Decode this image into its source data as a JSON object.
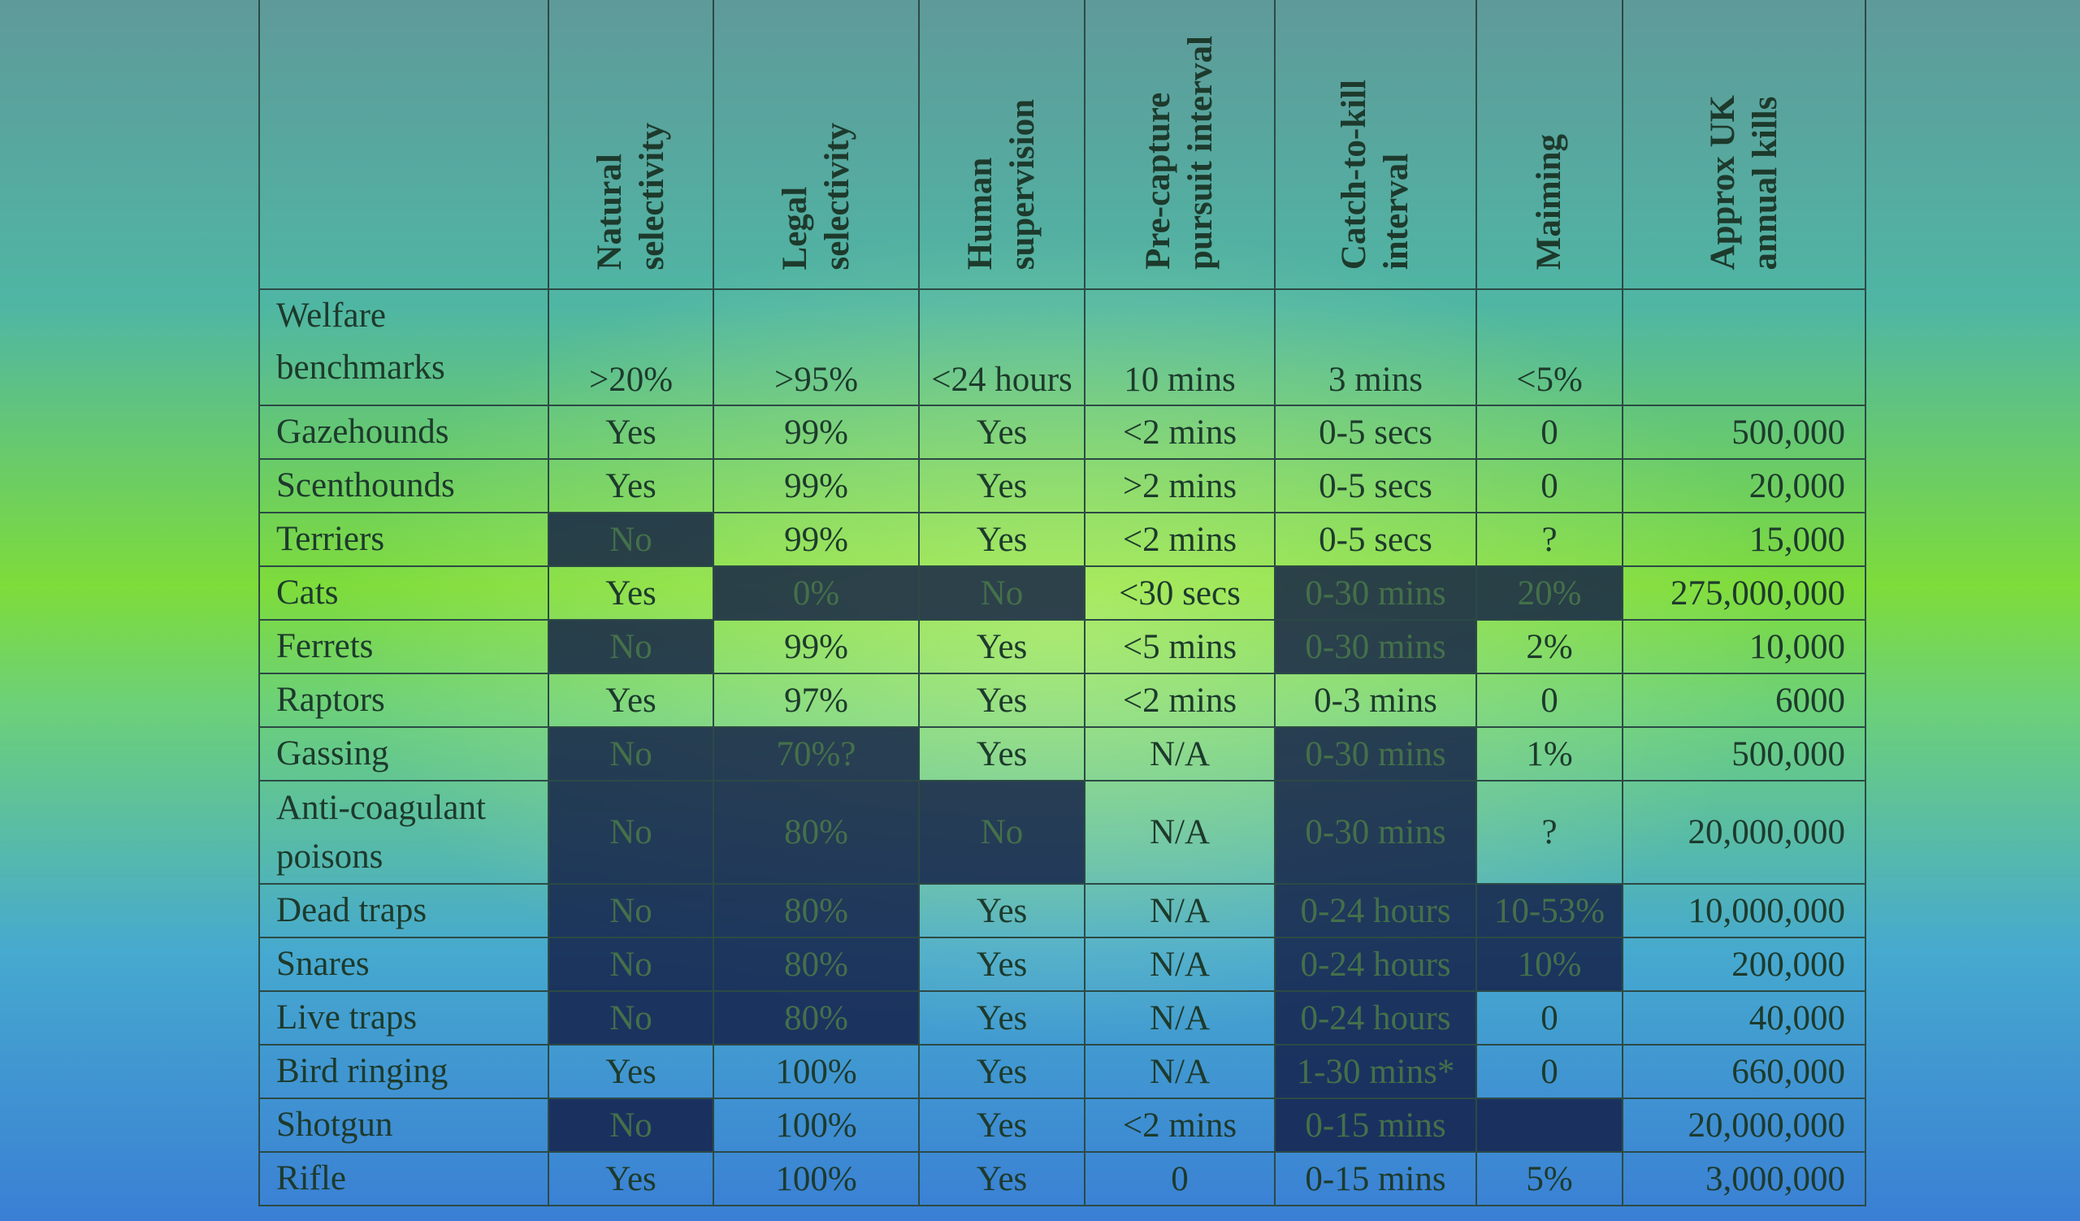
{
  "table": {
    "columns": [
      [
        "Natural",
        "selectivity"
      ],
      [
        "Legal",
        "selectivity"
      ],
      [
        "Human",
        "supervision"
      ],
      [
        "Pre-capture",
        "pursuit interval"
      ],
      [
        "Catch-to-kill",
        "interval"
      ],
      [
        "Maiming"
      ],
      [
        "Approx UK",
        "annual kills"
      ]
    ],
    "benchmarks": {
      "label": [
        "Welfare",
        "benchmarks"
      ],
      "values": [
        ">20%",
        ">95%",
        "<24 hours",
        "10 mins",
        "3 mins",
        "<5%"
      ]
    },
    "rows": [
      {
        "label": "Gazehounds",
        "cells": [
          {
            "text": "Yes",
            "flagged": false
          },
          {
            "text": "99%",
            "flagged": false
          },
          {
            "text": "Yes",
            "flagged": false
          },
          {
            "text": "<2 mins",
            "flagged": false
          },
          {
            "text": "0-5 secs",
            "flagged": false
          },
          {
            "text": "0",
            "flagged": false
          },
          {
            "text": "500,000",
            "flagged": false
          }
        ]
      },
      {
        "label": "Scenthounds",
        "cells": [
          {
            "text": "Yes",
            "flagged": false
          },
          {
            "text": "99%",
            "flagged": false
          },
          {
            "text": "Yes",
            "flagged": false
          },
          {
            "text": ">2 mins",
            "flagged": false
          },
          {
            "text": "0-5 secs",
            "flagged": false
          },
          {
            "text": "0",
            "flagged": false
          },
          {
            "text": "20,000",
            "flagged": false
          }
        ]
      },
      {
        "label": "Terriers",
        "cells": [
          {
            "text": "No",
            "flagged": true
          },
          {
            "text": "99%",
            "flagged": false
          },
          {
            "text": "Yes",
            "flagged": false
          },
          {
            "text": "<2 mins",
            "flagged": false
          },
          {
            "text": "0-5 secs",
            "flagged": false
          },
          {
            "text": "?",
            "flagged": false
          },
          {
            "text": "15,000",
            "flagged": false
          }
        ]
      },
      {
        "label": "Cats",
        "cells": [
          {
            "text": "Yes",
            "flagged": false
          },
          {
            "text": "0%",
            "flagged": true
          },
          {
            "text": "No",
            "flagged": true
          },
          {
            "text": "<30 secs",
            "flagged": false
          },
          {
            "text": "0-30 mins",
            "flagged": true
          },
          {
            "text": "20%",
            "flagged": true
          },
          {
            "text": "275,000,000",
            "flagged": false
          }
        ]
      },
      {
        "label": "Ferrets",
        "cells": [
          {
            "text": "No",
            "flagged": true
          },
          {
            "text": "99%",
            "flagged": false
          },
          {
            "text": "Yes",
            "flagged": false
          },
          {
            "text": "<5 mins",
            "flagged": false
          },
          {
            "text": "0-30 mins",
            "flagged": true
          },
          {
            "text": "2%",
            "flagged": false
          },
          {
            "text": "10,000",
            "flagged": false
          }
        ]
      },
      {
        "label": "Raptors",
        "cells": [
          {
            "text": "Yes",
            "flagged": false
          },
          {
            "text": "97%",
            "flagged": false
          },
          {
            "text": "Yes",
            "flagged": false
          },
          {
            "text": "<2 mins",
            "flagged": false
          },
          {
            "text": "0-3 mins",
            "flagged": false
          },
          {
            "text": "0",
            "flagged": false
          },
          {
            "text": "6000",
            "flagged": false
          }
        ]
      },
      {
        "label": "Gassing",
        "cells": [
          {
            "text": "No",
            "flagged": true
          },
          {
            "text": "70%?",
            "flagged": true
          },
          {
            "text": "Yes",
            "flagged": false
          },
          {
            "text": "N/A",
            "flagged": false
          },
          {
            "text": "0-30 mins",
            "flagged": true
          },
          {
            "text": "1%",
            "flagged": false
          },
          {
            "text": "500,000",
            "flagged": false
          }
        ]
      },
      {
        "label": "Anti-coagulant poisons",
        "cells": [
          {
            "text": "No",
            "flagged": true
          },
          {
            "text": "80%",
            "flagged": true
          },
          {
            "text": "No",
            "flagged": true
          },
          {
            "text": "N/A",
            "flagged": false
          },
          {
            "text": "0-30 mins",
            "flagged": true
          },
          {
            "text": "?",
            "flagged": false
          },
          {
            "text": "20,000,000",
            "flagged": false
          }
        ]
      },
      {
        "label": "Dead traps",
        "cells": [
          {
            "text": "No",
            "flagged": true
          },
          {
            "text": "80%",
            "flagged": true
          },
          {
            "text": "Yes",
            "flagged": false
          },
          {
            "text": "N/A",
            "flagged": false
          },
          {
            "text": "0-24 hours",
            "flagged": true
          },
          {
            "text": "10-53%",
            "flagged": true
          },
          {
            "text": "10,000,000",
            "flagged": false
          }
        ]
      },
      {
        "label": "Snares",
        "cells": [
          {
            "text": "No",
            "flagged": true
          },
          {
            "text": "80%",
            "flagged": true
          },
          {
            "text": "Yes",
            "flagged": false
          },
          {
            "text": "N/A",
            "flagged": false
          },
          {
            "text": "0-24 hours",
            "flagged": true
          },
          {
            "text": "10%",
            "flagged": true
          },
          {
            "text": "200,000",
            "flagged": false
          }
        ]
      },
      {
        "label": "Live traps",
        "cells": [
          {
            "text": "No",
            "flagged": true
          },
          {
            "text": "80%",
            "flagged": true
          },
          {
            "text": "Yes",
            "flagged": false
          },
          {
            "text": "N/A",
            "flagged": false
          },
          {
            "text": "0-24 hours",
            "flagged": true
          },
          {
            "text": "0",
            "flagged": false
          },
          {
            "text": "40,000",
            "flagged": false
          }
        ]
      },
      {
        "label": "Bird ringing",
        "cells": [
          {
            "text": "Yes",
            "flagged": false
          },
          {
            "text": "100%",
            "flagged": false
          },
          {
            "text": "Yes",
            "flagged": false
          },
          {
            "text": "N/A",
            "flagged": false
          },
          {
            "text": "1-30 mins*",
            "flagged": true
          },
          {
            "text": "0",
            "flagged": false
          },
          {
            "text": "660,000",
            "flagged": false
          }
        ]
      },
      {
        "label": "Shotgun",
        "cells": [
          {
            "text": "No",
            "flagged": true
          },
          {
            "text": "100%",
            "flagged": false
          },
          {
            "text": "Yes",
            "flagged": false
          },
          {
            "text": "<2 mins",
            "flagged": false
          },
          {
            "text": "0-15 mins",
            "flagged": true
          },
          {
            "flagged": true
          },
          {
            "text": "20,000,000",
            "flagged": false
          }
        ]
      },
      {
        "label": "Rifle",
        "cells": [
          {
            "text": "Yes",
            "flagged": false
          },
          {
            "text": "100%",
            "flagged": false
          },
          {
            "text": "Yes",
            "flagged": false
          },
          {
            "text": "0",
            "flagged": false
          },
          {
            "text": "0-15 mins",
            "flagged": false
          },
          {
            "text": "5%",
            "flagged": false
          },
          {
            "text": "3,000,000",
            "flagged": false
          }
        ]
      }
    ]
  }
}
